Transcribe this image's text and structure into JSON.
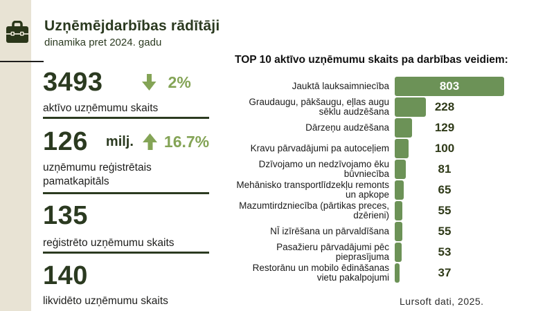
{
  "header": {
    "title": "Uzņēmējdarbības rādītāji",
    "subtitle": "dinamika pret 2024. gadu"
  },
  "stats": [
    {
      "value": "3493",
      "direction": "down",
      "percent": "2%",
      "label": "aktīvo uzņēmumu skaits"
    },
    {
      "value": "126",
      "unit": "milj.",
      "direction": "up",
      "percent": "16.7%",
      "label": "uzņēmumu reģistrētais pamatkapitāls"
    },
    {
      "value": "135",
      "label": "reģistrēto uzņēmumu skaits"
    },
    {
      "value": "140",
      "label": "likvidēto uzņēmumu skaits"
    }
  ],
  "chart_data": {
    "type": "bar",
    "orientation": "horizontal",
    "title": "TOP 10 aktīvo uzņēmumu skaits pa darbības veidiem:",
    "categories": [
      "Jauktā lauksaimniecība",
      "Graudaugu, pākšaugu, eļlas augu sēklu audzēšana",
      "Dārzeņu audzēšana",
      "Kravu pārvadājumi pa autoceļiem",
      "Dzīvojamo un nedzīvojamo ēku būvniecība",
      "Mehānisko transportlīdzekļu remonts un apkope",
      "Mazumtirdzniecība (pārtikas preces, dzērieni)",
      "NĪ izīrēšana un pārvaldīšana",
      "Pasažieru pārvadājumi pēc pieprasījuma",
      "Restorānu un mobilo ēdināšanas vietu pakalpojumi"
    ],
    "values": [
      803,
      228,
      129,
      100,
      81,
      65,
      55,
      55,
      53,
      37
    ],
    "xlim": [
      0,
      803
    ],
    "value_labels_shown": true,
    "grid": false,
    "legend": "none"
  },
  "footer": {
    "source": "Lursoft dati, 2025."
  },
  "colors": {
    "dark_green": "#2b3a20",
    "accent_green": "#84a456",
    "bar_green": "#6c9257",
    "band_beige": "#e8e3d4",
    "text_dark": "#1d1d1b"
  }
}
